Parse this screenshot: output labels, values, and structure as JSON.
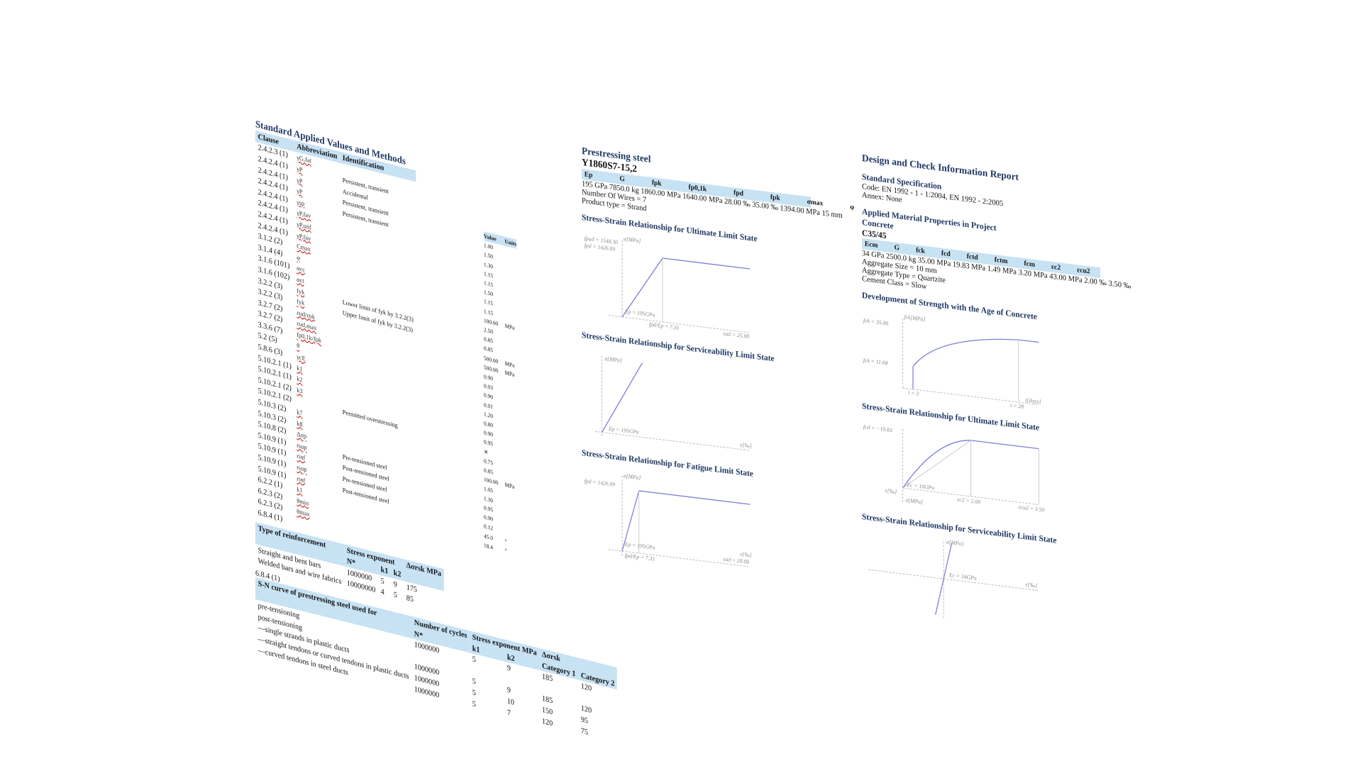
{
  "page1": {
    "title": "Standard Applied Values and Methods",
    "headers": {
      "clause": "Clause",
      "abbreviation": "Abbreviation",
      "identification": "Identification",
      "value": "Value",
      "units": "Units"
    },
    "rows": [
      {
        "clause": "2.4.2.3 (1)",
        "abbr": "γG,fat",
        "ident": ""
      },
      {
        "clause": "2.4.2.4 (1)",
        "abbr": "γP",
        "ident": "Persistent, transient"
      },
      {
        "clause": "2.4.2.4 (1)",
        "abbr": "γP",
        "ident": "Accidental"
      },
      {
        "clause": "2.4.2.4 (1)",
        "abbr": "γP",
        "ident": "Persistent, transient"
      },
      {
        "clause": "2.4.2.4 (1)",
        "abbr": "γsp",
        "ident": "Persistent, transient"
      },
      {
        "clause": "2.4.2.4 (1)",
        "abbr": "γP,fav",
        "ident": ""
      },
      {
        "clause": "2.4.2.4 (1)",
        "abbr": "γP,unf",
        "ident": ""
      },
      {
        "clause": "2.4.2.4 (1)",
        "abbr": "γP,fav",
        "ident": ""
      },
      {
        "clause": "3.1.2 (2)",
        "abbr": "Cmax",
        "ident": ""
      },
      {
        "clause": "3.1.4 (4)",
        "abbr": "φ",
        "ident": ""
      },
      {
        "clause": "3.1.6 (101)",
        "abbr": "αcc",
        "ident": ""
      },
      {
        "clause": "3.1.6 (102)",
        "abbr": "αct",
        "ident": ""
      },
      {
        "clause": "3.2.2 (3)",
        "abbr": "fyk",
        "ident": "Lower limit of fyk by 3.2.2(3)"
      },
      {
        "clause": "3.2.2 (3)",
        "abbr": "fyk",
        "ident": "Upper limit of fyk by 3.2.2(3)"
      },
      {
        "clause": "3.2.7 (2)",
        "abbr": "εud/εuk",
        "ident": ""
      },
      {
        "clause": "3.2.7 (2)",
        "abbr": "εud,max",
        "ident": ""
      },
      {
        "clause": "3.3.6 (7)",
        "abbr": "fp0,1k/fpk",
        "ident": ""
      },
      {
        "clause": "5.2 (5)",
        "abbr": "θ",
        "ident": ""
      },
      {
        "clause": "5.8.6 (3)",
        "abbr": "γcE",
        "ident": ""
      },
      {
        "clause": "5.10.2.1 (1)",
        "abbr": "k1",
        "ident": ""
      },
      {
        "clause": "5.10.2.1 (1)",
        "abbr": "k2",
        "ident": ""
      },
      {
        "clause": "5.10.2.1 (2)",
        "abbr": "k3",
        "ident": ""
      },
      {
        "clause": "5.10.2.1 (2)",
        "abbr": "",
        "ident": "Permitted overstressing"
      },
      {
        "clause": "5.10.3 (2)",
        "abbr": "k7",
        "ident": ""
      },
      {
        "clause": "5.10.3 (2)",
        "abbr": "k8",
        "ident": ""
      },
      {
        "clause": "5.10.8 (2)",
        "abbr": "Δσp",
        "ident": ""
      },
      {
        "clause": "5.10.9 (1)",
        "abbr": "rsup",
        "ident": "Pre-tensioned steel"
      },
      {
        "clause": "5.10.9 (1)",
        "abbr": "rinf",
        "ident": "Post-tensioned steel"
      },
      {
        "clause": "5.10.9 (1)",
        "abbr": "rsup",
        "ident": "Pre-tensioned steel"
      },
      {
        "clause": "5.10.9 (1)",
        "abbr": "rinf",
        "ident": "Post-tensioned steel"
      },
      {
        "clause": "6.2.2 (1)",
        "abbr": "k1",
        "ident": ""
      },
      {
        "clause": "6.2.3 (2)",
        "abbr": "θmin",
        "ident": ""
      },
      {
        "clause": "6.2.3 (2)",
        "abbr": "θmax",
        "ident": ""
      },
      {
        "clause": "6.8.4 (1)",
        "abbr": "",
        "ident": ""
      }
    ],
    "values": [
      {
        "v": "1.00",
        "u": ""
      },
      {
        "v": "1.50",
        "u": ""
      },
      {
        "v": "1.30",
        "u": ""
      },
      {
        "v": "1.15",
        "u": ""
      },
      {
        "v": "1.15",
        "u": ""
      },
      {
        "v": "1.50",
        "u": ""
      },
      {
        "v": "1.15",
        "u": ""
      },
      {
        "v": "1.15",
        "u": ""
      },
      {
        "v": "100.00",
        "u": "MPa"
      },
      {
        "v": "2.50",
        "u": ""
      },
      {
        "v": "0.85",
        "u": ""
      },
      {
        "v": "0.85",
        "u": ""
      },
      {
        "v": "500.00",
        "u": "MPa"
      },
      {
        "v": "500.00",
        "u": "MPa"
      },
      {
        "v": "0.90",
        "u": ""
      },
      {
        "v": "0.03",
        "u": ""
      },
      {
        "v": "0.90",
        "u": ""
      },
      {
        "v": "0.01",
        "u": ""
      },
      {
        "v": "1.20",
        "u": ""
      },
      {
        "v": "0.80",
        "u": ""
      },
      {
        "v": "0.90",
        "u": ""
      },
      {
        "v": "0.95",
        "u": ""
      },
      {
        "v": "✕",
        "u": ""
      },
      {
        "v": "0.75",
        "u": ""
      },
      {
        "v": "0.85",
        "u": ""
      },
      {
        "v": "100.00",
        "u": "MPa"
      },
      {
        "v": "1.05",
        "u": ""
      },
      {
        "v": "1.30",
        "u": ""
      },
      {
        "v": "0.95",
        "u": ""
      },
      {
        "v": "0.90",
        "u": ""
      },
      {
        "v": "0.12",
        "u": ""
      },
      {
        "v": "45.0",
        "u": "°"
      },
      {
        "v": "18.4",
        "u": "°"
      }
    ],
    "reinforcement_table": {
      "col1": "Type of reinforcement",
      "col2": "Stress exponent",
      "col3": "Δσrsk MPa",
      "sub": [
        "N*",
        "k1",
        "k2"
      ],
      "rows": [
        {
          "type": "Straight and bent bars",
          "n": "1000000",
          "k1": "5",
          "k2": "9",
          "s": "175"
        },
        {
          "type": "Welded bars and wire fabrics",
          "n": "10000000",
          "k1": "4",
          "k2": "5",
          "s": "85"
        }
      ]
    },
    "sn_clause": "6.8.4 (1)",
    "sn_table": {
      "col1": "S-N curve of prestressing steel used for",
      "col2": "Number of cycles",
      "col3": "Stress exponent MPa",
      "col4": "Δσrsk",
      "cat1": "Category 1",
      "cat2": "Category 2",
      "sub": [
        "N*",
        "k1",
        "k2"
      ],
      "rows": [
        {
          "type": "pre-tensioning",
          "n": "1000000",
          "k1": "5",
          "k2": "9",
          "c1": "185",
          "c2": "120"
        },
        {
          "type": "post-tensioning",
          "n": "",
          "k1": "",
          "k2": "",
          "c1": "",
          "c2": ""
        },
        {
          "type": "—single strands in plastic ducts",
          "n": "1000000",
          "k1": "5",
          "k2": "9",
          "c1": "185",
          "c2": "120"
        },
        {
          "type": "—straight tendons or curved tendons in plastic ducts",
          "n": "1000000",
          "k1": "5",
          "k2": "10",
          "c1": "150",
          "c2": "95"
        },
        {
          "type": "—curved tendons in steel ducts",
          "n": "1000000",
          "k1": "5",
          "k2": "7",
          "c1": "120",
          "c2": "75"
        }
      ]
    }
  },
  "page2": {
    "title": "Prestressing steel",
    "subtitle": "Y1860S7-15,2",
    "symbols": [
      "Ep",
      "G",
      "fpk",
      "fp0,1k",
      "fpd",
      "fpk",
      "σmax",
      "φ"
    ],
    "values_line": "195 GPa 7850.0 kg 1860.00 MPa 1640.00 MPa 28.00 ‰ 35.00 ‰ 1394.00 MPa 15 mm",
    "wires": "Number Of Wires = 7",
    "product": "Product type = Strand",
    "chart_uls": {
      "title": "Stress-Strain Relationship for Ultimate Limit State",
      "labels": {
        "fpud": "fpud = 1548.30",
        "fpd": "fpd = 1426.09",
        "axis": "σ[MPa]",
        "ep": "Ep = 195GPa",
        "epsud": "εud = 25.00",
        "ratio": "fpd/Ep = 7.31"
      }
    },
    "chart_sls": {
      "title": "Stress-Strain Relationship for Serviceability Limit State",
      "labels": {
        "axis": "σ[MPa]",
        "ep": "Ep = 195GPa",
        "eps": "ε[‰]"
      }
    },
    "chart_fls": {
      "title": "Stress-Strain Relationship for Fatigue Limit State",
      "labels": {
        "fpd": "fpd = 1426.09",
        "axis": "σ[MPa]",
        "ep": "Ep = 195GPa",
        "ratio": "fpd/Ep = 7.31",
        "epsud": "εud = 20.00",
        "eps": "ε[‰]"
      }
    }
  },
  "page3": {
    "title": "Design and Check Information Report",
    "spec_title": "Standard Specification",
    "code": "Code: EN 1992 - 1 - 1:2004, EN 1992 - 2:2005",
    "annex": "Annex: None",
    "mat_title": "Applied Material Properties in Project",
    "concrete": "Concrete",
    "grade": "C35/45",
    "symbols": [
      "Ecm",
      "G",
      "fck",
      "fcd",
      "fctd",
      "fctm",
      "fcm",
      "εc2",
      "εcu2"
    ],
    "values_line": "34 GPa 2500.0 kg 35.00 MPa 19.83 MPa 1.49 MPa 3.20 MPa 43.00 MPa 2.00 ‰ 3.50 ‰",
    "aggregate_size": "Aggregate Size = 10 mm",
    "aggregate_type": "Aggregate Type = Quartzite",
    "cement_class": "Cement Class = Slow",
    "chart_age": {
      "title": "Development of Strength with the Age of Concrete",
      "labels": {
        "fck": "fck = 35.00",
        "fcki": "fck = 11.68",
        "axis": "fck[MPa]",
        "t3": "t = 3",
        "t28": "t = 28",
        "days": "t[days]"
      }
    },
    "chart_uls": {
      "title": "Stress-Strain Relationship for Ultimate Limit State",
      "labels": {
        "fcd": "fcd = −19.83",
        "ec": "Ec = 10GPa",
        "e2": "εc2 = 2.00",
        "ecu": "εcu2 = 3.50",
        "axis": "σ[MPa]",
        "eps": "ε[‰]"
      }
    },
    "chart_sls": {
      "title": "Stress-Strain Relationship for Serviceability Limit State",
      "labels": {
        "axis": "σ[MPa]",
        "ec": "Ec = 34GPa",
        "eps": "ε[‰]"
      }
    }
  }
}
